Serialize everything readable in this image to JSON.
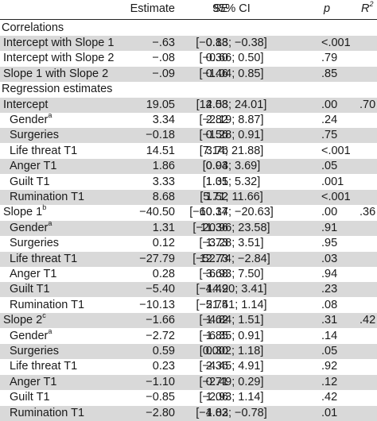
{
  "header": {
    "estimate": "Estimate",
    "se": "SE",
    "ci": "95% CI",
    "p": "p",
    "r2_base": "R",
    "r2_sup": "2"
  },
  "rows": [
    {
      "kind": "section",
      "label": "Correlations",
      "shade": false
    },
    {
      "kind": "data",
      "label": "Intercept with Slope 1",
      "indent": 1,
      "est": "−.63",
      "se": "0.13",
      "ci": "[−0.88; −0.38]",
      "p": "<.001",
      "r2": "",
      "shade": true
    },
    {
      "kind": "data",
      "label": "Intercept with Slope 2",
      "indent": 1,
      "est": "−.08",
      "se": "0.30",
      "ci": "[−0.66; 0.50]",
      "p": ".79",
      "r2": "",
      "shade": false
    },
    {
      "kind": "data",
      "label": "Slope 1 with Slope 2",
      "indent": 1,
      "est": "−.09",
      "se": "0.46",
      "ci": "[−1.04; 0.85]",
      "p": ".85",
      "r2": "",
      "shade": true
    },
    {
      "kind": "section",
      "label": "Regression estimates",
      "shade": false
    },
    {
      "kind": "data",
      "label": "Intercept",
      "indent": 1,
      "est": "19.05",
      "se": "2.53",
      "ci": "[14.08; 24.01]",
      "p": ".00",
      "r2": ".70",
      "shade": true
    },
    {
      "kind": "data",
      "label": "Gender",
      "sup": "a",
      "indent": 2,
      "est": "3.34",
      "se": "2.82",
      "ci": "[−2.19; 8.87]",
      "p": ".24",
      "r2": "",
      "shade": false
    },
    {
      "kind": "data",
      "label": "Surgeries",
      "indent": 2,
      "est": "−0.18",
      "se": "0.56",
      "ci": "[−1.28; 0.91]",
      "p": ".75",
      "r2": "",
      "shade": true
    },
    {
      "kind": "data",
      "label": "Life threat T1",
      "indent": 2,
      "est": "14.51",
      "se": "3.76",
      "ci": "[7.14; 21.88]",
      "p": "<.001",
      "r2": "",
      "shade": false
    },
    {
      "kind": "data",
      "label": "Anger T1",
      "indent": 2,
      "est": "1.86",
      "se": "0.94",
      "ci": "[0.03; 3.69]",
      "p": ".05",
      "r2": "",
      "shade": true
    },
    {
      "kind": "data",
      "label": "Guilt T1",
      "indent": 2,
      "est": "3.33",
      "se": "1.01",
      "ci": "[1.35; 5.32]",
      "p": ".001",
      "r2": "",
      "shade": false
    },
    {
      "kind": "data",
      "label": "Rumination T1",
      "indent": 2,
      "est": "8.68",
      "se": "1.52",
      "ci": "[5.71; 11.66]",
      "p": "<.001",
      "r2": "",
      "shade": true
    },
    {
      "kind": "data",
      "label": "Slope 1",
      "sup": "b",
      "indent": 1,
      "est": "−40.50",
      "se": "10.14",
      "ci": "[−60.37; −20.63]",
      "p": ".00",
      "r2": ".36",
      "shade": false
    },
    {
      "kind": "data",
      "label": "Gender",
      "sup": "a",
      "indent": 2,
      "est": "1.31",
      "se": "11.36",
      "ci": "[−20.96; 23.58]",
      "p": ".91",
      "r2": "",
      "shade": true
    },
    {
      "kind": "data",
      "label": "Surgeries",
      "indent": 2,
      "est": "0.12",
      "se": "1.73",
      "ci": "[−3.28; 3.51]",
      "p": ".95",
      "r2": "",
      "shade": false
    },
    {
      "kind": "data",
      "label": "Life threat T1",
      "indent": 2,
      "est": "−27.79",
      "se": "12.73",
      "ci": "[−52.74; −2.84]",
      "p": ".03",
      "r2": "",
      "shade": true
    },
    {
      "kind": "data",
      "label": "Anger T1",
      "indent": 2,
      "est": "0.28",
      "se": "3.68",
      "ci": "[−6.93; 7.50]",
      "p": ".94",
      "r2": "",
      "shade": false
    },
    {
      "kind": "data",
      "label": "Guilt T1",
      "indent": 2,
      "est": "−5.40",
      "se": "4.49",
      "ci": "[−14.20; 3.41]",
      "p": ".23",
      "r2": "",
      "shade": true
    },
    {
      "kind": "data",
      "label": "Rumination T1",
      "indent": 2,
      "est": "−10.13",
      "se": "5.75",
      "ci": "[−21.41; 1.14]",
      "p": ".08",
      "r2": "",
      "shade": false
    },
    {
      "kind": "data",
      "label": "Slope 2",
      "sup": "c",
      "indent": 1,
      "est": "−1.66",
      "se": "1.62",
      "ci": "[−4.84; 1.51]",
      "p": ".31",
      "r2": ".42",
      "shade": true
    },
    {
      "kind": "data",
      "label": "Gender",
      "sup": "a",
      "indent": 2,
      "est": "−2.72",
      "se": "1.85",
      "ci": "[−6.35; 0.91]",
      "p": ".14",
      "r2": "",
      "shade": false
    },
    {
      "kind": "data",
      "label": "Surgeries",
      "indent": 2,
      "est": "0.59",
      "se": "0.30",
      "ci": "[0.002; 1.18]",
      "p": ".05",
      "r2": "",
      "shade": true
    },
    {
      "kind": "data",
      "label": "Life threat T1",
      "indent": 2,
      "est": "0.23",
      "se": "2.36",
      "ci": "[−4.45; 4.91]",
      "p": ".92",
      "r2": "",
      "shade": false
    },
    {
      "kind": "data",
      "label": "Anger T1",
      "indent": 2,
      "est": "−1.10",
      "se": "0.71",
      "ci": "[−2.49; 0.29]",
      "p": ".12",
      "r2": "",
      "shade": true
    },
    {
      "kind": "data",
      "label": "Guilt T1",
      "indent": 2,
      "est": "−0.85",
      "se": "1.06",
      "ci": "[−2.93; 1.14]",
      "p": ".42",
      "r2": "",
      "shade": false
    },
    {
      "kind": "data",
      "label": "Rumination T1",
      "indent": 2,
      "est": "−2.80",
      "se": "1.03",
      "ci": "[−4.82; −0.78]",
      "p": ".01",
      "r2": "",
      "shade": true
    }
  ]
}
